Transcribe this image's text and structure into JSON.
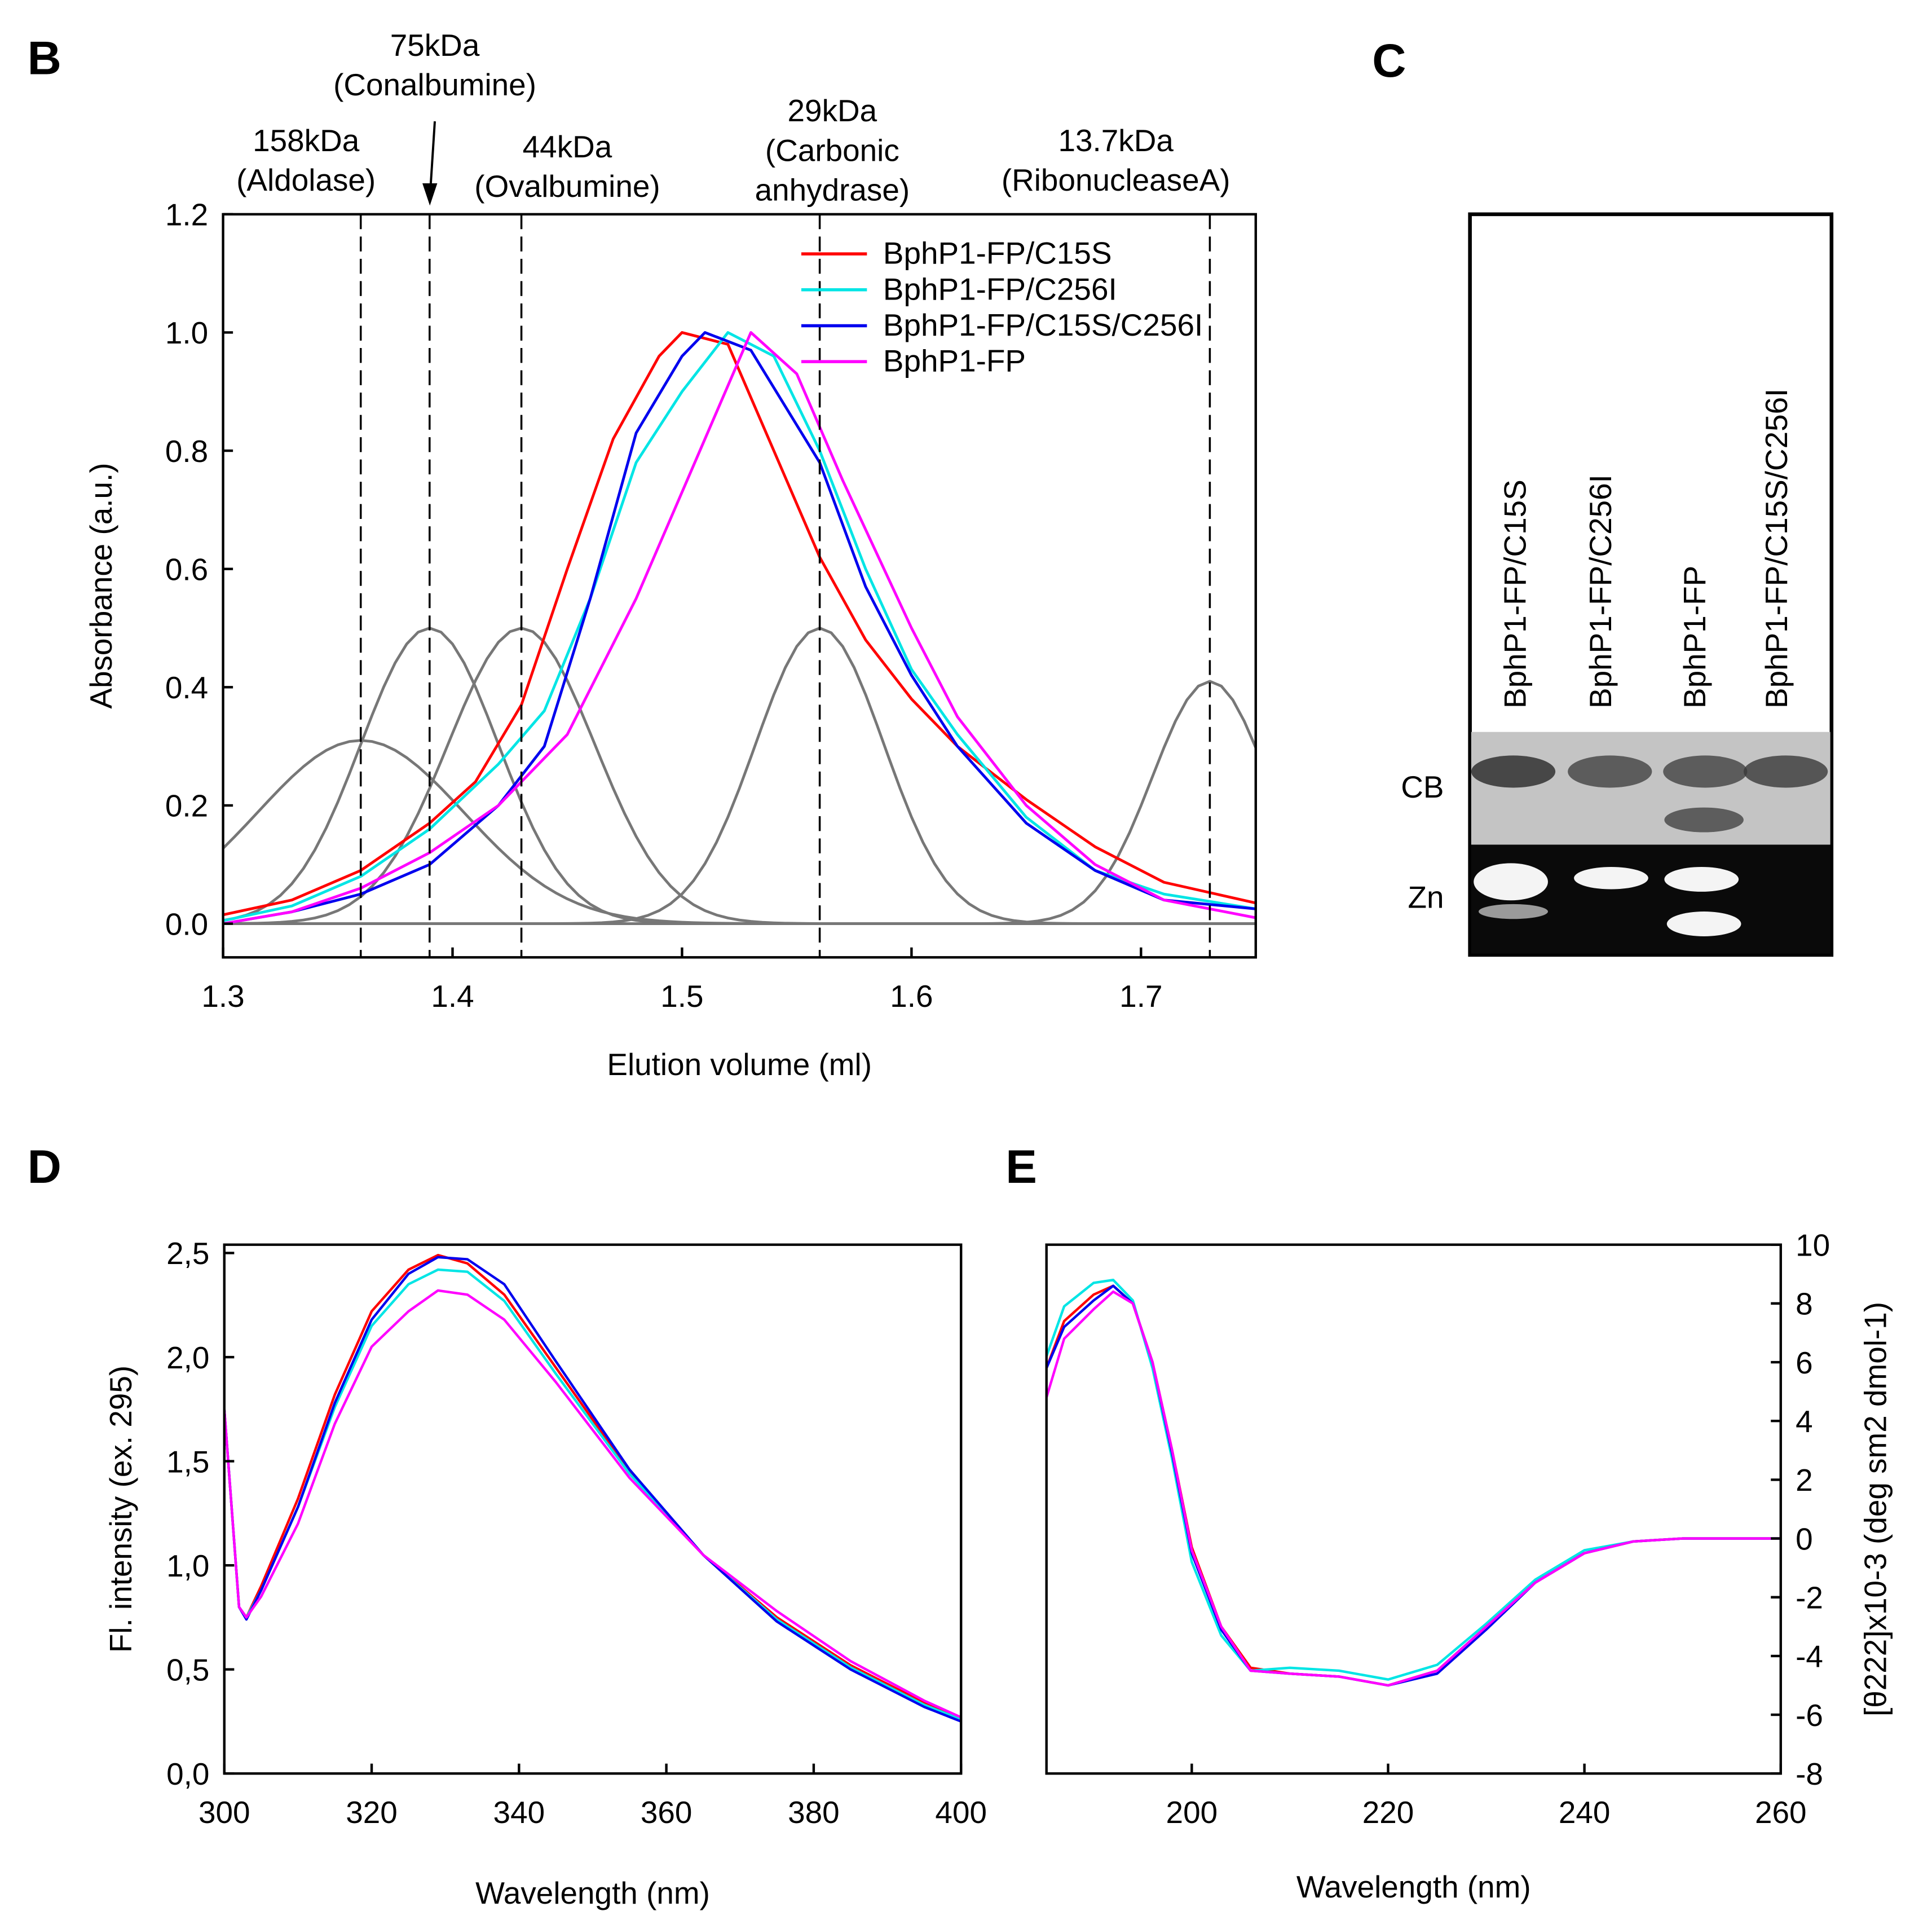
{
  "panels": {
    "B": "B",
    "C": "C",
    "D": "D",
    "E": "E"
  },
  "chart_data": [
    {
      "id": "B",
      "type": "line",
      "xlabel": "Elution volume (ml)",
      "ylabel": "Absorbance (a.u.)",
      "xlim": [
        1.3,
        1.75
      ],
      "ylim": [
        -0.057,
        1.2
      ],
      "xticks": [
        "1.3",
        "1.4",
        "1.5",
        "1.6",
        "1.7"
      ],
      "xtick_values": [
        1.3,
        1.4,
        1.5,
        1.6,
        1.7
      ],
      "yticks": [
        "0.0",
        "0.2",
        "0.4",
        "0.6",
        "0.8",
        "1.0",
        "1.2"
      ],
      "ytick_values": [
        0,
        0.2,
        0.4,
        0.6,
        0.8,
        1.0,
        1.2
      ],
      "markers": [
        {
          "x": 1.36,
          "label1": "158kDa",
          "label2": "(Aldolase)"
        },
        {
          "x": 1.39,
          "label1": "75kDa",
          "label2": "(Conalbumine)"
        },
        {
          "x": 1.43,
          "label1": "44kDa",
          "label2": "(Ovalbumine)"
        },
        {
          "x": 1.56,
          "label1": "29kDa",
          "label2": "(Carbonic",
          "label3": "anhydrase)"
        },
        {
          "x": 1.73,
          "label1": "13.7kDa",
          "label2": "(RibonucleaseA)"
        }
      ],
      "series": [
        {
          "name": "BphP1-FP/C15S",
          "color": "#ff0000",
          "x": [
            1.3,
            1.33,
            1.36,
            1.39,
            1.41,
            1.43,
            1.45,
            1.47,
            1.49,
            1.5,
            1.52,
            1.54,
            1.56,
            1.58,
            1.6,
            1.62,
            1.65,
            1.68,
            1.71,
            1.75
          ],
          "y": [
            0.015,
            0.04,
            0.09,
            0.17,
            0.24,
            0.37,
            0.6,
            0.82,
            0.96,
            1.0,
            0.98,
            0.8,
            0.62,
            0.48,
            0.38,
            0.3,
            0.21,
            0.13,
            0.07,
            0.035
          ]
        },
        {
          "name": "BphP1-FP/C256I",
          "color": "#00e5e5",
          "x": [
            1.3,
            1.33,
            1.36,
            1.39,
            1.42,
            1.44,
            1.46,
            1.48,
            1.5,
            1.52,
            1.54,
            1.56,
            1.58,
            1.6,
            1.62,
            1.65,
            1.68,
            1.71,
            1.75
          ],
          "y": [
            0.005,
            0.03,
            0.08,
            0.16,
            0.27,
            0.36,
            0.55,
            0.78,
            0.9,
            1.0,
            0.96,
            0.8,
            0.6,
            0.43,
            0.32,
            0.18,
            0.09,
            0.05,
            0.025
          ]
        },
        {
          "name": "BphP1-FP/C15S/C256I",
          "color": "#0000ee",
          "x": [
            1.3,
            1.33,
            1.36,
            1.39,
            1.42,
            1.44,
            1.46,
            1.48,
            1.5,
            1.51,
            1.53,
            1.56,
            1.58,
            1.6,
            1.62,
            1.65,
            1.68,
            1.71,
            1.75
          ],
          "y": [
            0.0,
            0.02,
            0.05,
            0.1,
            0.2,
            0.3,
            0.55,
            0.83,
            0.96,
            1.0,
            0.97,
            0.78,
            0.57,
            0.42,
            0.3,
            0.17,
            0.09,
            0.04,
            0.025
          ]
        },
        {
          "name": "BphP1-FP",
          "color": "#ff00ff",
          "x": [
            1.3,
            1.33,
            1.36,
            1.39,
            1.42,
            1.45,
            1.48,
            1.51,
            1.53,
            1.55,
            1.57,
            1.6,
            1.62,
            1.65,
            1.68,
            1.71,
            1.75
          ],
          "y": [
            0.0,
            0.02,
            0.06,
            0.12,
            0.2,
            0.32,
            0.55,
            0.82,
            1.0,
            0.93,
            0.75,
            0.5,
            0.35,
            0.2,
            0.1,
            0.04,
            0.01
          ]
        }
      ],
      "standards": [
        {
          "center": 1.36,
          "height": 0.31,
          "width": 0.045
        },
        {
          "center": 1.39,
          "height": 0.5,
          "width": 0.03
        },
        {
          "center": 1.43,
          "height": 0.5,
          "width": 0.032
        },
        {
          "center": 1.56,
          "height": 0.5,
          "width": 0.028
        },
        {
          "center": 1.73,
          "height": 0.41,
          "width": 0.025
        }
      ],
      "standards_color": "#777777",
      "legend": "top-right"
    },
    {
      "id": "D",
      "type": "line",
      "xlabel": "Wavelength (nm)",
      "ylabel": "Fl. intensity (ex. 295)",
      "xlim": [
        300,
        400
      ],
      "ylim": [
        0,
        2.54
      ],
      "xticks": [
        "300",
        "320",
        "340",
        "360",
        "380",
        "400"
      ],
      "xtick_values": [
        300,
        320,
        340,
        360,
        380,
        400
      ],
      "yticks": [
        "0,0",
        "0,5",
        "1,0",
        "1,5",
        "2,0",
        "2,5"
      ],
      "ytick_values": [
        0,
        0.5,
        1,
        1.5,
        2,
        2.5
      ],
      "x": [
        300,
        302,
        303,
        305,
        310,
        315,
        320,
        325,
        329,
        333,
        338,
        345,
        355,
        365,
        375,
        385,
        395,
        400
      ],
      "series": [
        {
          "name": "BphP1-FP/C15S",
          "color": "#ff0000",
          "y": [
            1.75,
            0.8,
            0.75,
            0.9,
            1.32,
            1.82,
            2.22,
            2.42,
            2.49,
            2.45,
            2.3,
            1.95,
            1.45,
            1.05,
            0.75,
            0.52,
            0.34,
            0.27
          ]
        },
        {
          "name": "BphP1-FP/C256I",
          "color": "#00e5e5",
          "y": [
            1.75,
            0.8,
            0.75,
            0.88,
            1.28,
            1.76,
            2.15,
            2.35,
            2.42,
            2.41,
            2.27,
            1.92,
            1.44,
            1.05,
            0.74,
            0.51,
            0.33,
            0.26
          ]
        },
        {
          "name": "BphP1-FP/C15S/C256I",
          "color": "#0000ee",
          "y": [
            1.75,
            0.8,
            0.74,
            0.88,
            1.28,
            1.78,
            2.18,
            2.4,
            2.48,
            2.47,
            2.35,
            1.98,
            1.46,
            1.05,
            0.73,
            0.5,
            0.32,
            0.25
          ]
        },
        {
          "name": "BphP1-FP",
          "color": "#ff00ff",
          "y": [
            1.75,
            0.8,
            0.75,
            0.85,
            1.2,
            1.68,
            2.05,
            2.22,
            2.32,
            2.3,
            2.18,
            1.88,
            1.42,
            1.05,
            0.78,
            0.54,
            0.35,
            0.27
          ]
        }
      ]
    },
    {
      "id": "E",
      "type": "line",
      "xlabel": "Wavelength (nm)",
      "ylabel": "[θ222]x10-3 (deg sm2 dmol-1)",
      "xlim": [
        185.2,
        260
      ],
      "ylim": [
        -8,
        10
      ],
      "xticks": [
        "200",
        "220",
        "240",
        "260"
      ],
      "xtick_values": [
        200,
        220,
        240,
        260
      ],
      "yticks": [
        "-8",
        "-6",
        "-4",
        "-2",
        "0",
        "2",
        "4",
        "6",
        "8",
        "10"
      ],
      "ytick_values": [
        -8,
        -6,
        -4,
        -2,
        0,
        2,
        4,
        6,
        8,
        10
      ],
      "x": [
        185.2,
        187,
        190,
        192,
        194,
        196,
        198,
        200,
        203,
        206,
        210,
        215,
        220,
        225,
        230,
        235,
        240,
        245,
        250,
        260
      ],
      "series": [
        {
          "name": "BphP1-FP/C15S",
          "color": "#ff0000",
          "y": [
            5.8,
            7.4,
            8.3,
            8.6,
            8.0,
            6.0,
            3.0,
            -0.3,
            -3.0,
            -4.4,
            -4.6,
            -4.7,
            -5.0,
            -4.5,
            -3.0,
            -1.5,
            -0.5,
            -0.1,
            0,
            0
          ]
        },
        {
          "name": "BphP1-FP/C256I",
          "color": "#00e5e5",
          "y": [
            6.2,
            7.9,
            8.7,
            8.8,
            8.1,
            5.8,
            2.7,
            -0.8,
            -3.3,
            -4.5,
            -4.4,
            -4.5,
            -4.8,
            -4.3,
            -2.9,
            -1.4,
            -0.4,
            -0.1,
            0,
            0
          ]
        },
        {
          "name": "BphP1-FP/C15S/C256I",
          "color": "#0000ee",
          "y": [
            5.8,
            7.2,
            8.1,
            8.6,
            8.0,
            6.0,
            2.9,
            -0.5,
            -3.1,
            -4.5,
            -4.6,
            -4.7,
            -5.0,
            -4.6,
            -3.1,
            -1.5,
            -0.5,
            -0.1,
            0,
            0
          ]
        },
        {
          "name": "BphP1-FP",
          "color": "#ff00ff",
          "y": [
            4.8,
            6.8,
            7.8,
            8.4,
            8.0,
            6.0,
            3.0,
            -0.4,
            -3.0,
            -4.5,
            -4.6,
            -4.7,
            -5.0,
            -4.5,
            -3.0,
            -1.5,
            -0.5,
            -0.1,
            0,
            0
          ]
        }
      ]
    }
  ],
  "gel": {
    "lanes": [
      "BphP1-FP/C15S",
      "BphP1-FP/C256I",
      "BphP1-FP",
      "BphP1-FP/C15S/C256I"
    ],
    "row_labels": [
      "CB",
      "Zn"
    ]
  }
}
